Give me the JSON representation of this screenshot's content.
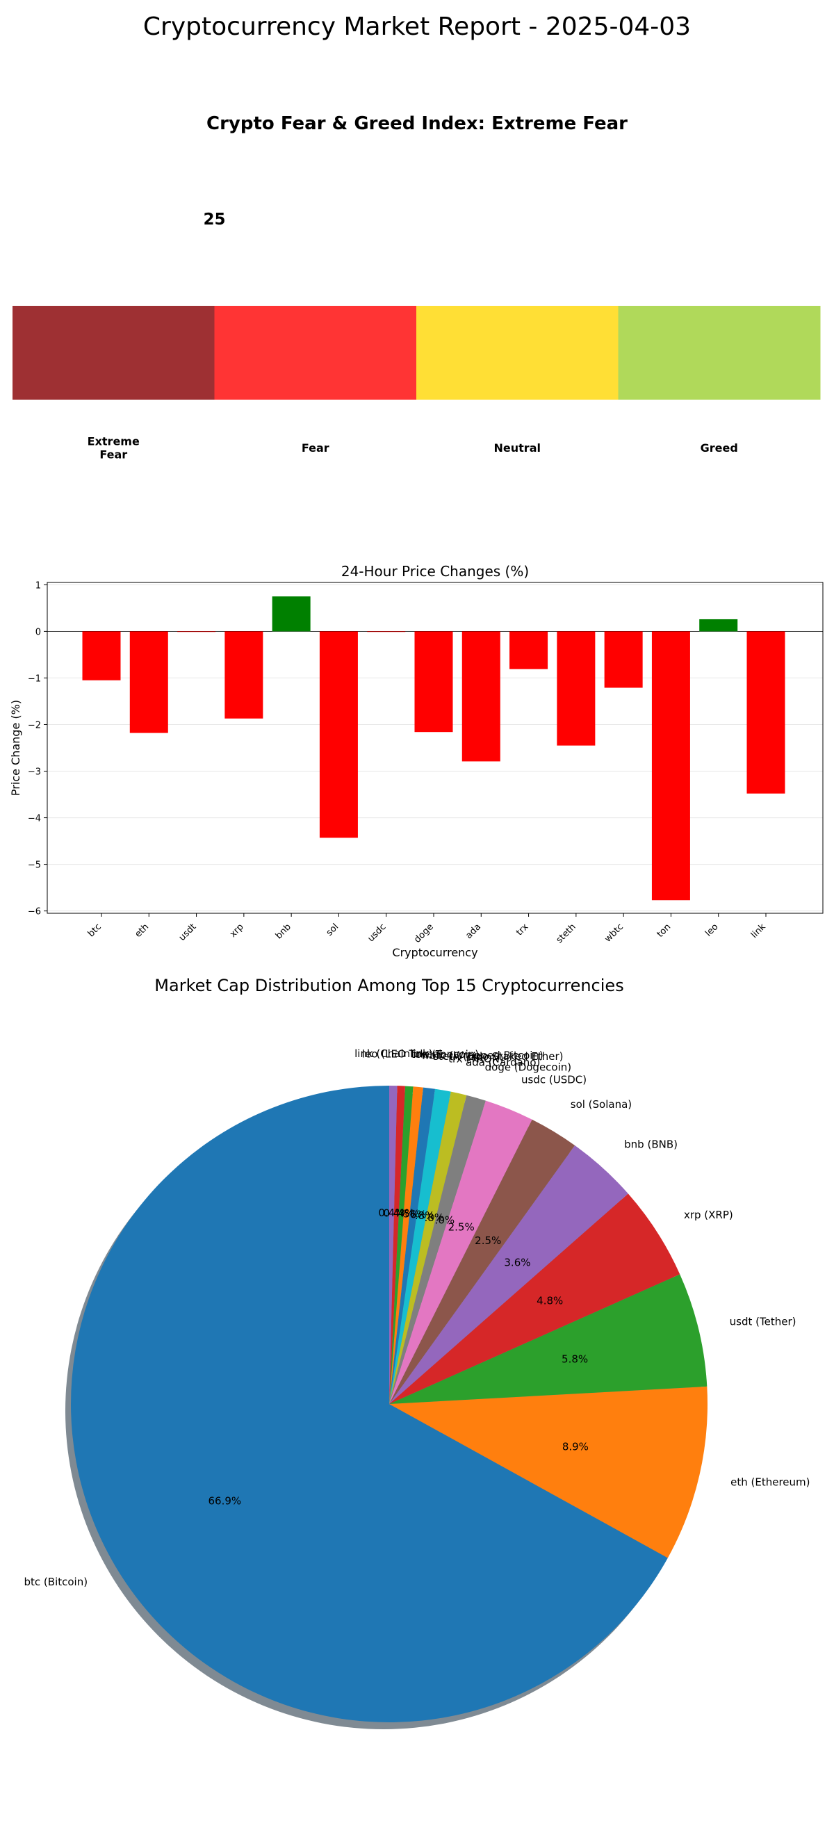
{
  "report": {
    "title": "Cryptocurrency Market Report - 2025-04-03"
  },
  "chart_data": [
    {
      "type": "gauge",
      "title": "Crypto Fear & Greed Index: Extreme Fear",
      "value": 25,
      "range": [
        0,
        100
      ],
      "segments": [
        {
          "label": [
            "Extreme",
            "Fear"
          ],
          "color": "#9e3033"
        },
        {
          "label": [
            "Fear"
          ],
          "color": "#ff3434"
        },
        {
          "label": [
            "Neutral"
          ],
          "color": "#ffdf35"
        },
        {
          "label": [
            "Greed"
          ],
          "color": "#b0d95a"
        }
      ]
    },
    {
      "type": "bar",
      "title": "24-Hour Price Changes (%)",
      "xlabel": "Cryptocurrency",
      "ylabel": "Price Change (%)",
      "ylim": [
        -6.05,
        1.05
      ],
      "yticks": [
        -6,
        -5,
        -4,
        -3,
        -2,
        -1,
        0,
        1
      ],
      "grid": true,
      "categories": [
        "btc",
        "eth",
        "usdt",
        "xrp",
        "bnb",
        "sol",
        "usdc",
        "doge",
        "ada",
        "trx",
        "steth",
        "wbtc",
        "ton",
        "leo",
        "link"
      ],
      "values": [
        -1.05,
        -2.18,
        -0.01,
        -1.87,
        0.75,
        -4.43,
        -0.01,
        -2.16,
        -2.79,
        -0.81,
        -2.45,
        -1.21,
        -5.77,
        0.26,
        -3.48
      ],
      "positive_color": "#008000",
      "negative_color": "#ff0000"
    },
    {
      "type": "pie",
      "title": "Market Cap Distribution Among Top 15 Cryptocurrencies",
      "shadow": true,
      "labels": [
        "btc (Bitcoin)",
        "eth (Ethereum)",
        "usdt (Tether)",
        "xrp (XRP)",
        "bnb (BNB)",
        "sol (Solana)",
        "usdc (USDC)",
        "doge (Dogecoin)",
        "ada (Cardano)",
        "trx (TRON)",
        "steth (Lido Staked Ether)",
        "wbtc (Wrapped Bitcoin)",
        "ton (Toncoin)",
        "leo (LEO Token)",
        "link (Chainlink)"
      ],
      "values": [
        66.9,
        8.9,
        5.8,
        4.8,
        3.6,
        2.5,
        2.5,
        1.0,
        0.8,
        0.8,
        0.6,
        0.5,
        0.4,
        0.4,
        0.4
      ],
      "percent_labels": [
        "66.9%",
        "8.9%",
        "5.8%",
        "4.8%",
        "3.6%",
        "2.5%",
        "2.5%",
        "1.0%",
        "0.8%",
        "0.8%",
        "0.6%",
        "0.5%",
        "0.4%",
        "0.4%",
        "0.4%"
      ],
      "colors": [
        "#1f77b4",
        "#ff7f0e",
        "#2ca02c",
        "#d62728",
        "#9467bd",
        "#8c564b",
        "#e377c2",
        "#7f7f7f",
        "#bcbd22",
        "#17becf",
        "#1f77b4",
        "#ff7f0e",
        "#2ca02c",
        "#d62728",
        "#9467bd"
      ]
    }
  ]
}
